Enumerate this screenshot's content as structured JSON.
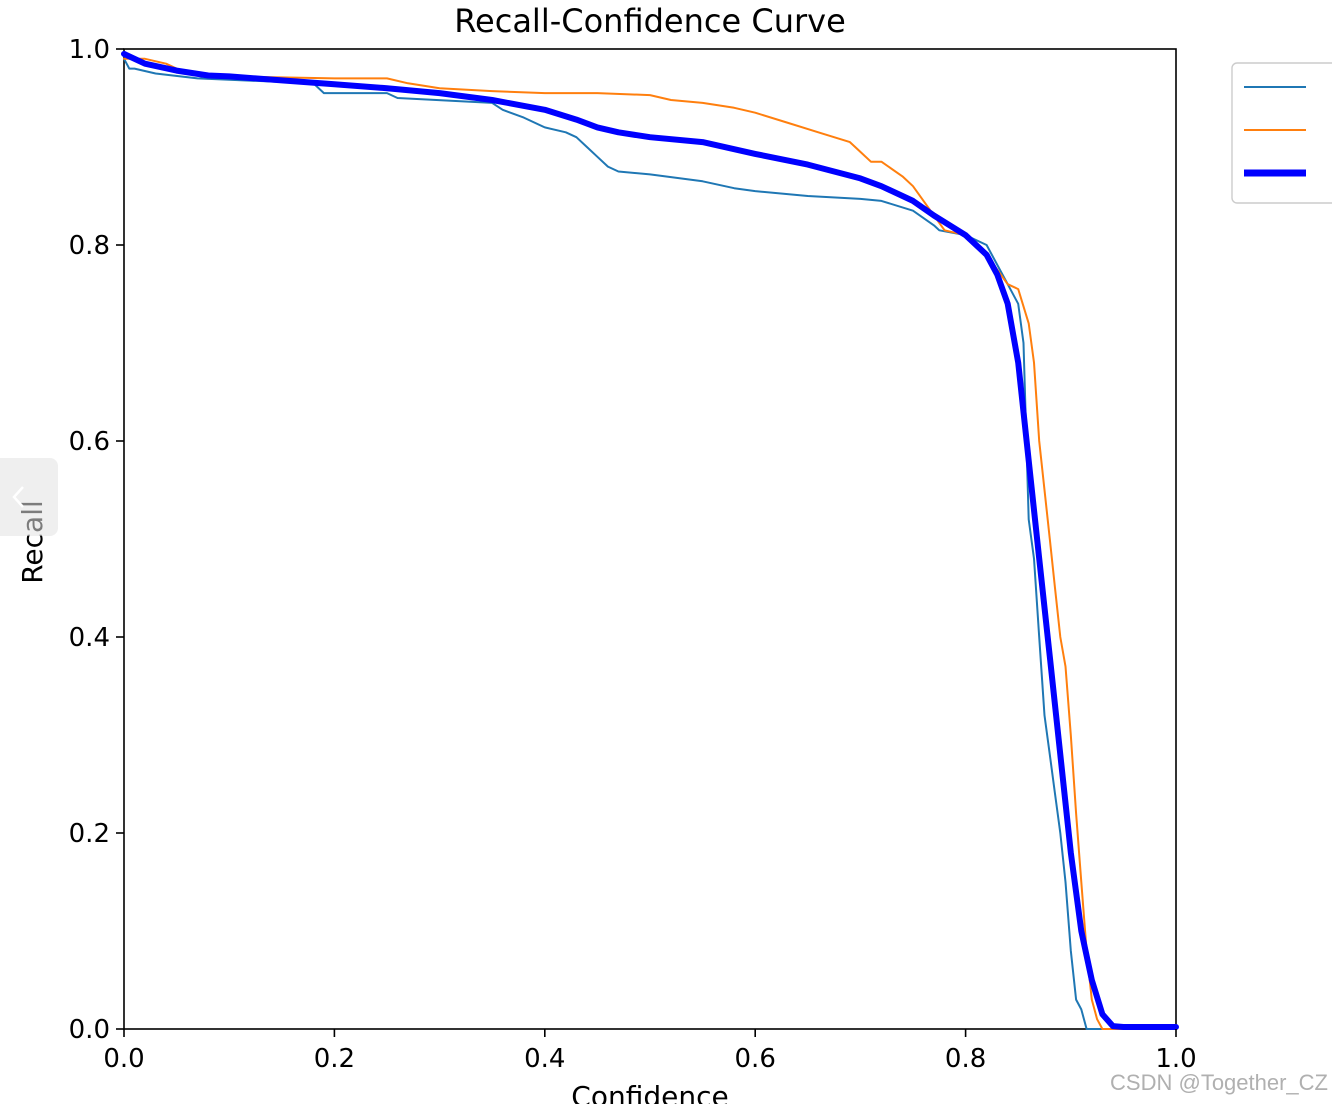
{
  "chart_data": {
    "type": "line",
    "title": "Recall-Confidence Curve",
    "xlabel": "Confidence",
    "ylabel": "Recall",
    "xlim": [
      0,
      1
    ],
    "ylim": [
      0,
      1
    ],
    "xticks": [
      "0.0",
      "0.2",
      "0.4",
      "0.6",
      "0.8",
      "1.0"
    ],
    "yticks": [
      "0.0",
      "0.2",
      "0.4",
      "0.6",
      "0.8",
      "1.0"
    ],
    "grid": false,
    "legend_position": "outside-top-right",
    "series": [
      {
        "name": "",
        "color": "#1f77b4",
        "line_width": 2,
        "x": [
          0.0,
          0.005,
          0.01,
          0.03,
          0.07,
          0.18,
          0.19,
          0.25,
          0.26,
          0.35,
          0.36,
          0.38,
          0.4,
          0.42,
          0.43,
          0.44,
          0.45,
          0.46,
          0.47,
          0.5,
          0.55,
          0.58,
          0.6,
          0.65,
          0.7,
          0.72,
          0.75,
          0.77,
          0.775,
          0.8,
          0.82,
          0.84,
          0.85,
          0.855,
          0.86,
          0.865,
          0.87,
          0.875,
          0.88,
          0.885,
          0.89,
          0.895,
          0.9,
          0.905,
          0.91,
          0.915,
          1.0
        ],
        "y": [
          0.99,
          0.98,
          0.98,
          0.975,
          0.97,
          0.965,
          0.955,
          0.955,
          0.95,
          0.945,
          0.938,
          0.93,
          0.92,
          0.915,
          0.91,
          0.9,
          0.89,
          0.88,
          0.875,
          0.872,
          0.865,
          0.858,
          0.855,
          0.85,
          0.847,
          0.845,
          0.835,
          0.82,
          0.815,
          0.81,
          0.8,
          0.76,
          0.74,
          0.7,
          0.52,
          0.48,
          0.4,
          0.32,
          0.28,
          0.24,
          0.2,
          0.15,
          0.08,
          0.03,
          0.02,
          0.0,
          0.0
        ]
      },
      {
        "name": "",
        "color": "#ff7f0e",
        "line_width": 2,
        "x": [
          0.0,
          0.01,
          0.02,
          0.04,
          0.06,
          0.1,
          0.2,
          0.25,
          0.27,
          0.3,
          0.35,
          0.4,
          0.45,
          0.5,
          0.52,
          0.55,
          0.58,
          0.6,
          0.63,
          0.66,
          0.69,
          0.7,
          0.71,
          0.72,
          0.74,
          0.75,
          0.77,
          0.78,
          0.8,
          0.82,
          0.84,
          0.85,
          0.86,
          0.865,
          0.87,
          0.875,
          0.88,
          0.885,
          0.89,
          0.895,
          0.9,
          0.905,
          0.91,
          0.915,
          0.92,
          0.925,
          0.93,
          1.0
        ],
        "y": [
          0.99,
          0.99,
          0.99,
          0.985,
          0.975,
          0.972,
          0.97,
          0.97,
          0.965,
          0.96,
          0.957,
          0.955,
          0.955,
          0.953,
          0.948,
          0.945,
          0.94,
          0.935,
          0.925,
          0.915,
          0.905,
          0.895,
          0.885,
          0.885,
          0.87,
          0.86,
          0.83,
          0.815,
          0.81,
          0.79,
          0.76,
          0.755,
          0.72,
          0.68,
          0.6,
          0.55,
          0.5,
          0.45,
          0.4,
          0.37,
          0.3,
          0.22,
          0.15,
          0.08,
          0.03,
          0.01,
          0.0,
          0.0
        ]
      },
      {
        "name": "",
        "color": "#0000ff",
        "line_width": 6,
        "x": [
          0.0,
          0.02,
          0.05,
          0.08,
          0.1,
          0.15,
          0.2,
          0.25,
          0.3,
          0.35,
          0.4,
          0.43,
          0.45,
          0.47,
          0.5,
          0.55,
          0.6,
          0.65,
          0.7,
          0.72,
          0.75,
          0.77,
          0.8,
          0.82,
          0.83,
          0.84,
          0.85,
          0.86,
          0.87,
          0.88,
          0.89,
          0.9,
          0.91,
          0.92,
          0.93,
          0.94,
          0.95,
          1.0
        ],
        "y": [
          0.995,
          0.985,
          0.978,
          0.973,
          0.972,
          0.968,
          0.964,
          0.96,
          0.955,
          0.948,
          0.938,
          0.928,
          0.92,
          0.915,
          0.91,
          0.905,
          0.893,
          0.882,
          0.868,
          0.86,
          0.845,
          0.83,
          0.81,
          0.79,
          0.77,
          0.74,
          0.68,
          0.58,
          0.48,
          0.38,
          0.28,
          0.18,
          0.1,
          0.05,
          0.015,
          0.003,
          0.002,
          0.002
        ]
      }
    ]
  },
  "watermark": "CSDN @Together_CZ"
}
